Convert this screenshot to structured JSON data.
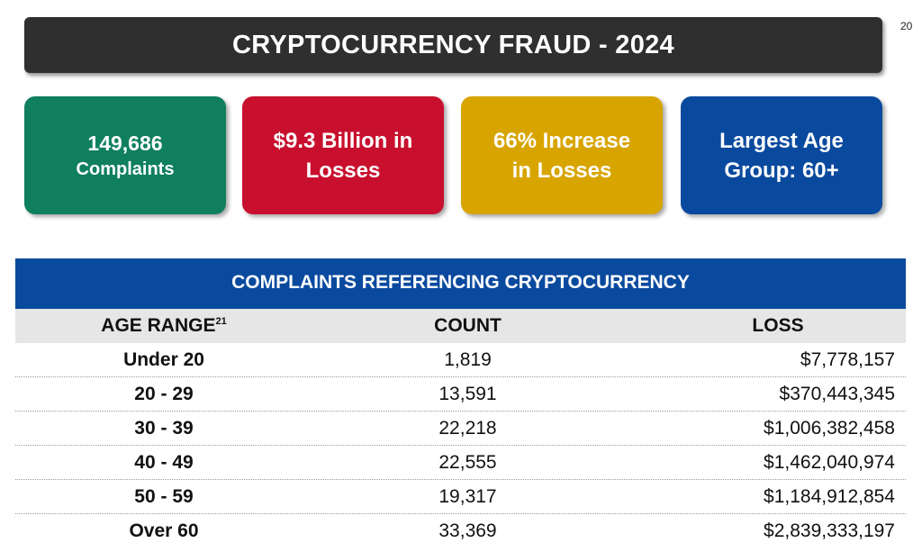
{
  "page_number": "20",
  "title": "CRYPTOCURRENCY FRAUD - 2024",
  "cards": [
    {
      "line1": "149,686",
      "line2": "Complaints",
      "color": "#0f7f5d"
    },
    {
      "line1": "$9.3 Billion in",
      "line2": "Losses",
      "color": "#c8102e"
    },
    {
      "line1": "66% Increase",
      "line2": "in Losses",
      "color": "#d8a500"
    },
    {
      "line1": "Largest Age",
      "line2": "Group: 60+",
      "color": "#0a4a9e"
    }
  ],
  "table": {
    "title": "COMPLAINTS REFERENCING CRYPTOCURRENCY",
    "headers": {
      "age": "AGE RANGE",
      "age_footnote": "21",
      "count": "COUNT",
      "loss": "LOSS"
    },
    "rows": [
      {
        "age": "Under 20",
        "count": "1,819",
        "loss": "$7,778,157"
      },
      {
        "age": "20 - 29",
        "count": "13,591",
        "loss": "$370,443,345"
      },
      {
        "age": "30 - 39",
        "count": "22,218",
        "loss": "$1,006,382,458"
      },
      {
        "age": "40 - 49",
        "count": "22,555",
        "loss": "$1,462,040,974"
      },
      {
        "age": "50 - 59",
        "count": "19,317",
        "loss": "$1,184,912,854"
      },
      {
        "age": "Over 60",
        "count": "33,369",
        "loss": "$2,839,333,197"
      }
    ]
  },
  "colors": {
    "title_bar": "#2f2f2f",
    "table_header_band": "#0a4a9e",
    "column_header_bg": "#e6e6e6"
  }
}
